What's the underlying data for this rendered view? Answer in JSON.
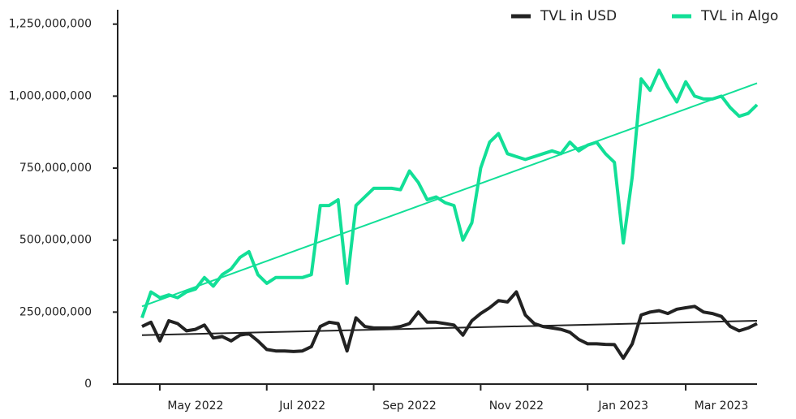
{
  "chart_data": {
    "type": "line",
    "categories": [
      null,
      null,
      null,
      null,
      null,
      null,
      "May 2022",
      null,
      null,
      null,
      null,
      null,
      null,
      null,
      null,
      null,
      null,
      null,
      "Jul 2022",
      null,
      null,
      null,
      null,
      null,
      null,
      null,
      null,
      null,
      null,
      null,
      "Sep 2022",
      null,
      null,
      null,
      null,
      null,
      null,
      null,
      null,
      null,
      null,
      null,
      "Nov 2022",
      null,
      null,
      null,
      null,
      null,
      null,
      null,
      null,
      null,
      null,
      null,
      "Jan 2023",
      null,
      null,
      null,
      null,
      null,
      null,
      null,
      null,
      null,
      null,
      "Mar 2023",
      null,
      null,
      null,
      null
    ],
    "series": [
      {
        "name": "TVL in USD",
        "color": "#222222",
        "values": [
          200000000,
          215000000,
          150000000,
          220000000,
          210000000,
          185000000,
          190000000,
          205000000,
          160000000,
          165000000,
          150000000,
          170000000,
          175000000,
          150000000,
          120000000,
          115000000,
          115000000,
          113000000,
          115000000,
          130000000,
          200000000,
          215000000,
          210000000,
          115000000,
          230000000,
          200000000,
          195000000,
          195000000,
          195000000,
          200000000,
          210000000,
          250000000,
          215000000,
          215000000,
          210000000,
          205000000,
          170000000,
          220000000,
          245000000,
          265000000,
          290000000,
          285000000,
          320000000,
          240000000,
          210000000,
          200000000,
          195000000,
          190000000,
          180000000,
          155000000,
          140000000,
          140000000,
          138000000,
          137000000,
          90000000,
          140000000,
          240000000,
          250000000,
          255000000,
          245000000,
          260000000,
          265000000,
          270000000,
          250000000,
          245000000,
          235000000,
          200000000,
          185000000,
          195000000,
          210000000
        ]
      },
      {
        "name": "TVL in Algo",
        "color": "#12df97",
        "values": [
          230000000,
          320000000,
          300000000,
          310000000,
          300000000,
          320000000,
          330000000,
          370000000,
          340000000,
          380000000,
          400000000,
          440000000,
          460000000,
          380000000,
          350000000,
          370000000,
          370000000,
          370000000,
          370000000,
          380000000,
          620000000,
          620000000,
          640000000,
          350000000,
          620000000,
          650000000,
          680000000,
          680000000,
          680000000,
          675000000,
          740000000,
          700000000,
          640000000,
          650000000,
          630000000,
          620000000,
          500000000,
          560000000,
          750000000,
          840000000,
          870000000,
          800000000,
          790000000,
          780000000,
          790000000,
          800000000,
          810000000,
          800000000,
          840000000,
          810000000,
          830000000,
          840000000,
          800000000,
          770000000,
          490000000,
          720000000,
          1060000000,
          1020000000,
          1090000000,
          1030000000,
          980000000,
          1050000000,
          1000000000,
          990000000,
          990000000,
          1000000000,
          960000000,
          930000000,
          940000000,
          970000000
        ]
      }
    ],
    "trendlines": [
      {
        "series": 0,
        "values": [
          170000000,
          220000000
        ]
      },
      {
        "series": 1,
        "values": [
          270000000,
          1045000000
        ]
      }
    ],
    "ylim": [
      0,
      1300000000
    ],
    "yticks": [
      0,
      {
        "value": 250000000,
        "label": "250,000,000"
      },
      {
        "value": 500000000,
        "label": "500,000,000"
      },
      {
        "value": 750000000,
        "label": "750,000,000"
      },
      {
        "value": 1000000000,
        "label": "1,000,000,000"
      },
      {
        "value": 1250000000,
        "label": "1,250,000,000"
      }
    ],
    "legend": "upper right"
  }
}
